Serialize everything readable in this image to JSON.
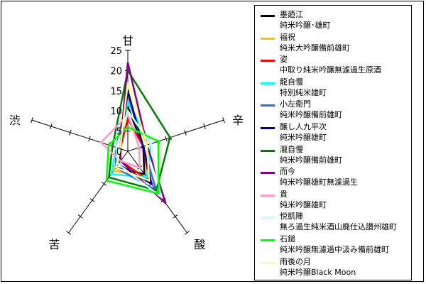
{
  "chart_data": {
    "type": "radar",
    "axes": [
      "甘",
      "辛",
      "酸",
      "苦",
      "渋"
    ],
    "r_ticks": [
      "0",
      "5",
      "10",
      "15",
      "20",
      "25"
    ],
    "rlim": [
      0,
      25
    ],
    "legend_position": "right",
    "series": [
      {
        "name": "墨廼江",
        "sub": "純米吟醸･雄町",
        "color": "#000000",
        "values": [
          11,
          4,
          7,
          5,
          3
        ]
      },
      {
        "name": "福祝",
        "sub": "純米大吟醸備前雄町",
        "color": "#ffc000",
        "values": [
          13,
          5,
          8,
          6,
          2
        ]
      },
      {
        "name": "姿",
        "sub": "中取り純米吟醸無濾過生原酒",
        "color": "#ff0000",
        "values": [
          8,
          4,
          9,
          3,
          2
        ]
      },
      {
        "name": "龍自慢",
        "sub": "特別純米雄町",
        "color": "#00ffff",
        "values": [
          12,
          6,
          8,
          7,
          3
        ]
      },
      {
        "name": "小左衛門",
        "sub": "純米吟醸備前雄町",
        "color": "#3366ff",
        "values": [
          14,
          4,
          12,
          5,
          3
        ]
      },
      {
        "name": "醸し人九平次",
        "sub": "純米吟醸雄町",
        "color": "#000080",
        "values": [
          15,
          4,
          10,
          4,
          2
        ]
      },
      {
        "name": "瀧自慢",
        "sub": "純米吟醸備前雄町",
        "color": "#008000",
        "values": [
          20,
          11,
          12,
          8,
          4
        ]
      },
      {
        "name": "而今",
        "sub": "純米吟醸雄町無濾過生",
        "color": "#800080",
        "values": [
          22,
          5,
          16,
          3,
          2
        ]
      },
      {
        "name": "貴",
        "sub": "純米吟醸雄町",
        "color": "#ff99cc",
        "values": [
          9,
          3,
          5,
          3,
          7
        ]
      },
      {
        "name": "悦凱陣",
        "sub": "無ろ過生純米酒山廃仕込讃州雄町",
        "color": "#ccffff",
        "values": [
          10,
          6,
          14,
          4,
          3
        ]
      },
      {
        "name": "石鎚",
        "sub": "純米吟醸無濾過中汲み備前雄町",
        "color": "#00ff00",
        "values": [
          6,
          8,
          13,
          9,
          5
        ]
      },
      {
        "name": "雨後の月",
        "sub": "純米吟醸Black Moon",
        "color": "#ffff99",
        "values": [
          17,
          5,
          9,
          5,
          2
        ]
      }
    ]
  }
}
